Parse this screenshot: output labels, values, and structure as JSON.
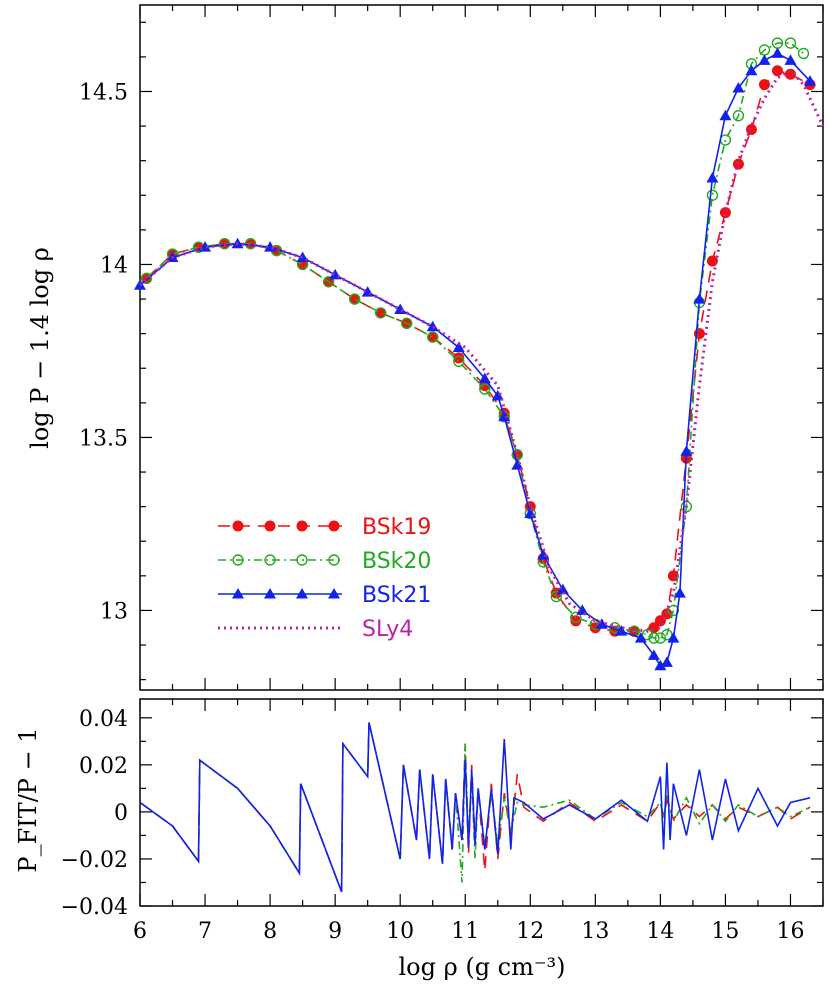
{
  "chart_data": [
    {
      "type": "line",
      "panel": "top",
      "ylabel": "log P − 1.4 log ρ",
      "xlim": [
        6,
        16.5
      ],
      "ylim": [
        12.77,
        14.75
      ],
      "xticks": [
        6,
        7,
        8,
        9,
        10,
        11,
        12,
        13,
        14,
        15,
        16
      ],
      "yticks": [
        13,
        13.5,
        14,
        14.5
      ],
      "ytick_labels": [
        "13",
        "13.5",
        "14",
        "14.5"
      ],
      "legend_placement": "lower-left",
      "grid": false,
      "series": [
        {
          "name": "BSk19",
          "color": "#ee1111",
          "style": "dashed",
          "marker": "filled-circle",
          "x": [
            6.1,
            6.5,
            6.9,
            7.3,
            7.7,
            8.1,
            8.5,
            8.9,
            9.3,
            9.7,
            10.1,
            10.5,
            10.9,
            11.3,
            11.6,
            11.8,
            12.0,
            12.2,
            12.4,
            12.7,
            13.0,
            13.3,
            13.6,
            13.9,
            14.0,
            14.1,
            14.2,
            14.4,
            14.6,
            14.8,
            15.0,
            15.2,
            15.4,
            15.6,
            15.8,
            16.0,
            16.3
          ],
          "y": [
            13.96,
            14.03,
            14.05,
            14.06,
            14.06,
            14.04,
            14.0,
            13.95,
            13.9,
            13.86,
            13.83,
            13.79,
            13.73,
            13.65,
            13.57,
            13.45,
            13.3,
            13.15,
            13.05,
            12.97,
            12.95,
            12.94,
            12.94,
            12.95,
            12.97,
            12.99,
            13.1,
            13.44,
            13.8,
            14.01,
            14.15,
            14.29,
            14.39,
            14.52,
            14.56,
            14.55,
            14.52
          ]
        },
        {
          "name": "BSk20",
          "color": "#22aa22",
          "style": "dash-dot",
          "marker": "open-circle",
          "x": [
            6.1,
            6.5,
            6.9,
            7.3,
            7.7,
            8.1,
            8.5,
            8.9,
            9.3,
            9.7,
            10.1,
            10.5,
            10.9,
            11.3,
            11.6,
            11.8,
            12.0,
            12.2,
            12.4,
            12.7,
            13.0,
            13.3,
            13.6,
            13.8,
            13.9,
            14.0,
            14.1,
            14.2,
            14.4,
            14.6,
            14.8,
            15.0,
            15.2,
            15.4,
            15.6,
            15.8,
            16.0,
            16.2
          ],
          "y": [
            13.96,
            14.03,
            14.05,
            14.06,
            14.06,
            14.04,
            14.0,
            13.95,
            13.9,
            13.86,
            13.83,
            13.79,
            13.72,
            13.64,
            13.56,
            13.45,
            13.28,
            13.14,
            13.04,
            12.98,
            12.96,
            12.95,
            12.94,
            12.93,
            12.92,
            12.92,
            12.93,
            13.0,
            13.3,
            13.89,
            14.2,
            14.36,
            14.43,
            14.58,
            14.62,
            14.64,
            14.64,
            14.61
          ]
        },
        {
          "name": "BSk21",
          "color": "#1122ee",
          "style": "solid",
          "marker": "filled-triangle",
          "x": [
            6.0,
            6.5,
            7.0,
            7.5,
            8.0,
            8.5,
            9.0,
            9.5,
            10.0,
            10.5,
            10.9,
            11.3,
            11.5,
            11.6,
            11.8,
            12.0,
            12.2,
            12.5,
            12.8,
            13.1,
            13.4,
            13.7,
            13.9,
            14.0,
            14.1,
            14.2,
            14.3,
            14.4,
            14.6,
            14.8,
            15.0,
            15.2,
            15.4,
            15.6,
            15.8,
            16.0,
            16.3
          ],
          "y": [
            13.94,
            14.02,
            14.05,
            14.06,
            14.05,
            14.02,
            13.97,
            13.92,
            13.87,
            13.82,
            13.76,
            13.67,
            13.62,
            13.56,
            13.42,
            13.28,
            13.16,
            13.06,
            13.0,
            12.96,
            12.94,
            12.92,
            12.87,
            12.84,
            12.85,
            12.92,
            13.05,
            13.46,
            13.9,
            14.25,
            14.43,
            14.51,
            14.56,
            14.59,
            14.61,
            14.59,
            14.53
          ]
        },
        {
          "name": "SLy4",
          "color": "#bb22aa",
          "style": "dotted",
          "marker": "none",
          "x": [
            6.0,
            6.5,
            7.0,
            7.5,
            8.0,
            8.5,
            9.0,
            9.5,
            10.0,
            10.5,
            11.0,
            11.5,
            11.8,
            12.0,
            12.3,
            12.6,
            13.0,
            13.4,
            13.8,
            14.0,
            14.2,
            14.4,
            14.6,
            14.8,
            15.0,
            15.2,
            15.4,
            15.6,
            15.8,
            16.0,
            16.2,
            16.5
          ],
          "y": [
            13.94,
            14.02,
            14.05,
            14.06,
            14.05,
            14.02,
            13.97,
            13.92,
            13.87,
            13.82,
            13.76,
            13.65,
            13.45,
            13.3,
            13.12,
            13.02,
            12.97,
            12.95,
            12.94,
            12.95,
            13.05,
            13.3,
            13.65,
            13.95,
            14.15,
            14.3,
            14.4,
            14.48,
            14.54,
            14.56,
            14.52,
            14.4
          ]
        }
      ]
    },
    {
      "type": "line",
      "panel": "bottom",
      "xlabel": "log ρ (g cm⁻³)",
      "ylabel": "P_FIT/P − 1",
      "xlim": [
        6,
        16.5
      ],
      "ylim": [
        -0.04,
        0.048
      ],
      "xticks": [
        6,
        7,
        8,
        9,
        10,
        11,
        12,
        13,
        14,
        15,
        16
      ],
      "xtick_labels": [
        "6",
        "7",
        "8",
        "9",
        "10",
        "11",
        "12",
        "13",
        "14",
        "15",
        "16"
      ],
      "yticks": [
        -0.04,
        -0.02,
        0,
        0.02,
        0.04
      ],
      "ytick_labels": [
        "−0.04",
        "−0.02",
        "0",
        "0.02",
        "0.04"
      ],
      "grid": false,
      "series": [
        {
          "name": "BSk19",
          "color": "#ee1111",
          "style": "dashed",
          "x": [
            6.0,
            6.5,
            6.9,
            6.92,
            7.5,
            8.0,
            8.45,
            8.47,
            9.1,
            9.12,
            9.5,
            9.52,
            10.0,
            10.05,
            10.25,
            10.3,
            10.45,
            10.5,
            10.65,
            10.7,
            10.8,
            10.85,
            10.95,
            11.0,
            11.05,
            11.1,
            11.15,
            11.2,
            11.3,
            11.4,
            11.5,
            11.6,
            11.7,
            11.8,
            11.9,
            12.2,
            12.6,
            13.0,
            13.4,
            13.8,
            14.0,
            14.05,
            14.1,
            14.2,
            14.4,
            14.6,
            14.8,
            15.0,
            15.2,
            15.5,
            15.8,
            16.0,
            16.3
          ],
          "y": [
            0.004,
            -0.006,
            -0.021,
            0.022,
            0.01,
            -0.006,
            -0.026,
            0.012,
            -0.034,
            0.029,
            0.015,
            0.038,
            -0.02,
            0.02,
            -0.012,
            0.018,
            -0.02,
            0.016,
            -0.022,
            0.014,
            -0.016,
            0.008,
            -0.012,
            0.029,
            -0.018,
            0.02,
            -0.012,
            0.01,
            -0.025,
            0.012,
            -0.02,
            0.008,
            -0.01,
            0.016,
            0.002,
            -0.004,
            0.004,
            -0.004,
            0.003,
            -0.004,
            0.004,
            -0.002,
            0.005,
            -0.003,
            0.003,
            -0.002,
            0.003,
            -0.003,
            0.002,
            -0.002,
            0.002,
            -0.003,
            0.002
          ]
        },
        {
          "name": "BSk20",
          "color": "#22aa22",
          "style": "dash-dot",
          "x": [
            6.0,
            6.5,
            6.9,
            6.92,
            7.5,
            8.0,
            8.45,
            8.47,
            9.1,
            9.12,
            9.5,
            9.52,
            10.0,
            10.05,
            10.25,
            10.3,
            10.45,
            10.5,
            10.65,
            10.7,
            10.8,
            10.85,
            10.95,
            11.0,
            11.05,
            11.1,
            11.15,
            11.2,
            11.3,
            11.4,
            11.5,
            11.6,
            11.7,
            11.8,
            11.9,
            12.2,
            12.6,
            13.0,
            13.4,
            13.8,
            14.0,
            14.05,
            14.1,
            14.2,
            14.4,
            14.6,
            14.8,
            15.0,
            15.2,
            15.5,
            15.8,
            16.0,
            16.3
          ],
          "y": [
            0.004,
            -0.006,
            -0.021,
            0.022,
            0.01,
            -0.006,
            -0.026,
            0.012,
            -0.034,
            0.029,
            0.015,
            0.038,
            -0.02,
            0.02,
            -0.012,
            0.018,
            -0.02,
            0.016,
            -0.022,
            0.014,
            -0.016,
            0.008,
            -0.03,
            0.029,
            -0.012,
            0.015,
            -0.02,
            0.01,
            -0.015,
            0.008,
            -0.014,
            0.006,
            -0.008,
            0.004,
            0.003,
            0.002,
            0.005,
            -0.003,
            0.004,
            -0.002,
            0.004,
            -0.003,
            0.007,
            -0.004,
            0.006,
            -0.005,
            0.003,
            -0.004,
            0.003,
            -0.002,
            0.002,
            -0.002,
            0.002
          ]
        },
        {
          "name": "BSk21",
          "color": "#1122ee",
          "style": "solid",
          "x": [
            6.0,
            6.5,
            6.9,
            6.92,
            7.5,
            8.0,
            8.45,
            8.47,
            9.1,
            9.12,
            9.5,
            9.52,
            10.0,
            10.05,
            10.25,
            10.3,
            10.45,
            10.5,
            10.65,
            10.7,
            10.8,
            10.85,
            10.95,
            11.0,
            11.05,
            11.1,
            11.15,
            11.2,
            11.3,
            11.4,
            11.5,
            11.6,
            11.7,
            11.75,
            11.9,
            12.2,
            12.6,
            13.0,
            13.4,
            13.8,
            14.0,
            14.05,
            14.1,
            14.15,
            14.2,
            14.4,
            14.6,
            14.8,
            15.0,
            15.2,
            15.5,
            15.8,
            16.0,
            16.3
          ],
          "y": [
            0.004,
            -0.006,
            -0.021,
            0.022,
            0.01,
            -0.006,
            -0.026,
            0.012,
            -0.034,
            0.029,
            0.015,
            0.038,
            -0.02,
            0.02,
            -0.012,
            0.018,
            -0.02,
            0.016,
            -0.022,
            0.014,
            -0.016,
            0.008,
            -0.012,
            0.022,
            -0.015,
            0.018,
            -0.014,
            0.01,
            -0.016,
            0.01,
            -0.018,
            0.031,
            -0.016,
            0.006,
            0.004,
            -0.003,
            0.003,
            -0.003,
            0.005,
            -0.004,
            0.015,
            -0.016,
            0.021,
            -0.012,
            0.012,
            -0.01,
            0.018,
            -0.012,
            0.014,
            -0.008,
            0.01,
            -0.006,
            0.004,
            0.006
          ]
        }
      ]
    }
  ]
}
